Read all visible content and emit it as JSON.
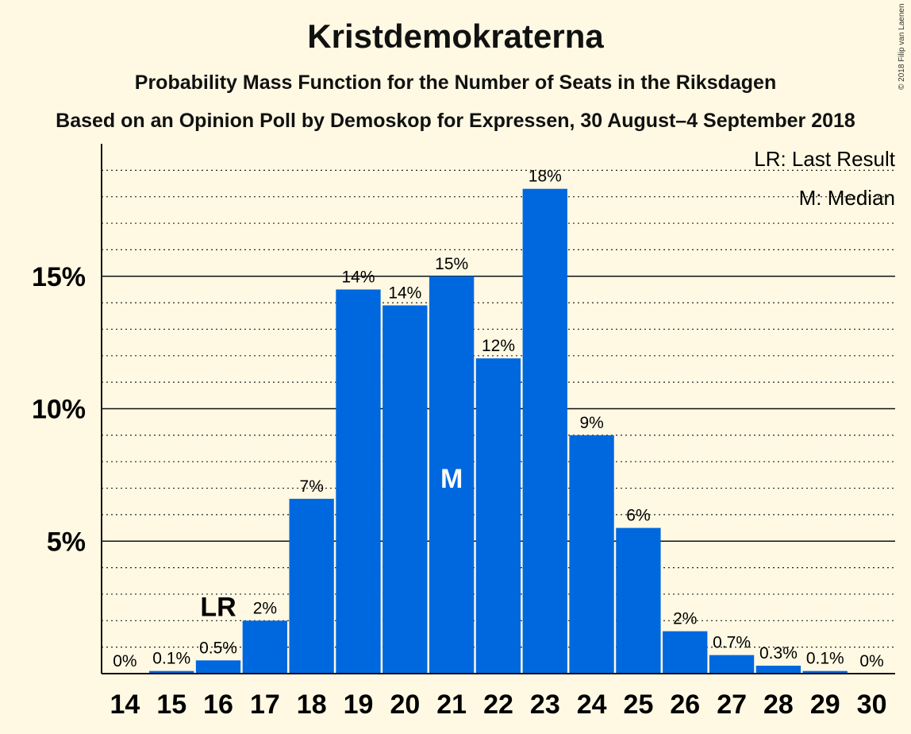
{
  "title": "Kristdemokraterna",
  "subtitle": "Probability Mass Function for the Number of Seats in the Riksdagen",
  "subtitle2": "Based on an Opinion Poll by Demoskop for Expressen, 30 August–4 September 2018",
  "copyright": "© 2018 Filip van Laenen",
  "legend": {
    "lr": "LR: Last Result",
    "m": "M: Median"
  },
  "colors": {
    "bar": "#0068de",
    "background": "#fff9e3",
    "text": "#111111"
  },
  "chart_data": {
    "type": "bar",
    "categories": [
      "14",
      "15",
      "16",
      "17",
      "18",
      "19",
      "20",
      "21",
      "22",
      "23",
      "24",
      "25",
      "26",
      "27",
      "28",
      "29",
      "30"
    ],
    "values": [
      0,
      0.1,
      0.5,
      2.0,
      6.6,
      14.5,
      13.9,
      15.0,
      11.9,
      18.3,
      9.0,
      5.5,
      1.6,
      0.7,
      0.3,
      0.1,
      0
    ],
    "data_labels": [
      "0%",
      "0.1%",
      "0.5%",
      "2%",
      "7%",
      "14%",
      "14%",
      "15%",
      "12%",
      "18%",
      "9%",
      "6%",
      "2%",
      "0.7%",
      "0.3%",
      "0.1%",
      "0%"
    ],
    "unit": "%",
    "ylim": [
      0,
      20
    ],
    "yticks": [
      5,
      10,
      15
    ],
    "ytick_labels": [
      "5%",
      "10%",
      "15%"
    ],
    "minor_grid_step": 1,
    "last_result": {
      "category": "16",
      "label": "LR"
    },
    "median": {
      "category": "21",
      "label": "M"
    },
    "legend_position": "top-right"
  }
}
